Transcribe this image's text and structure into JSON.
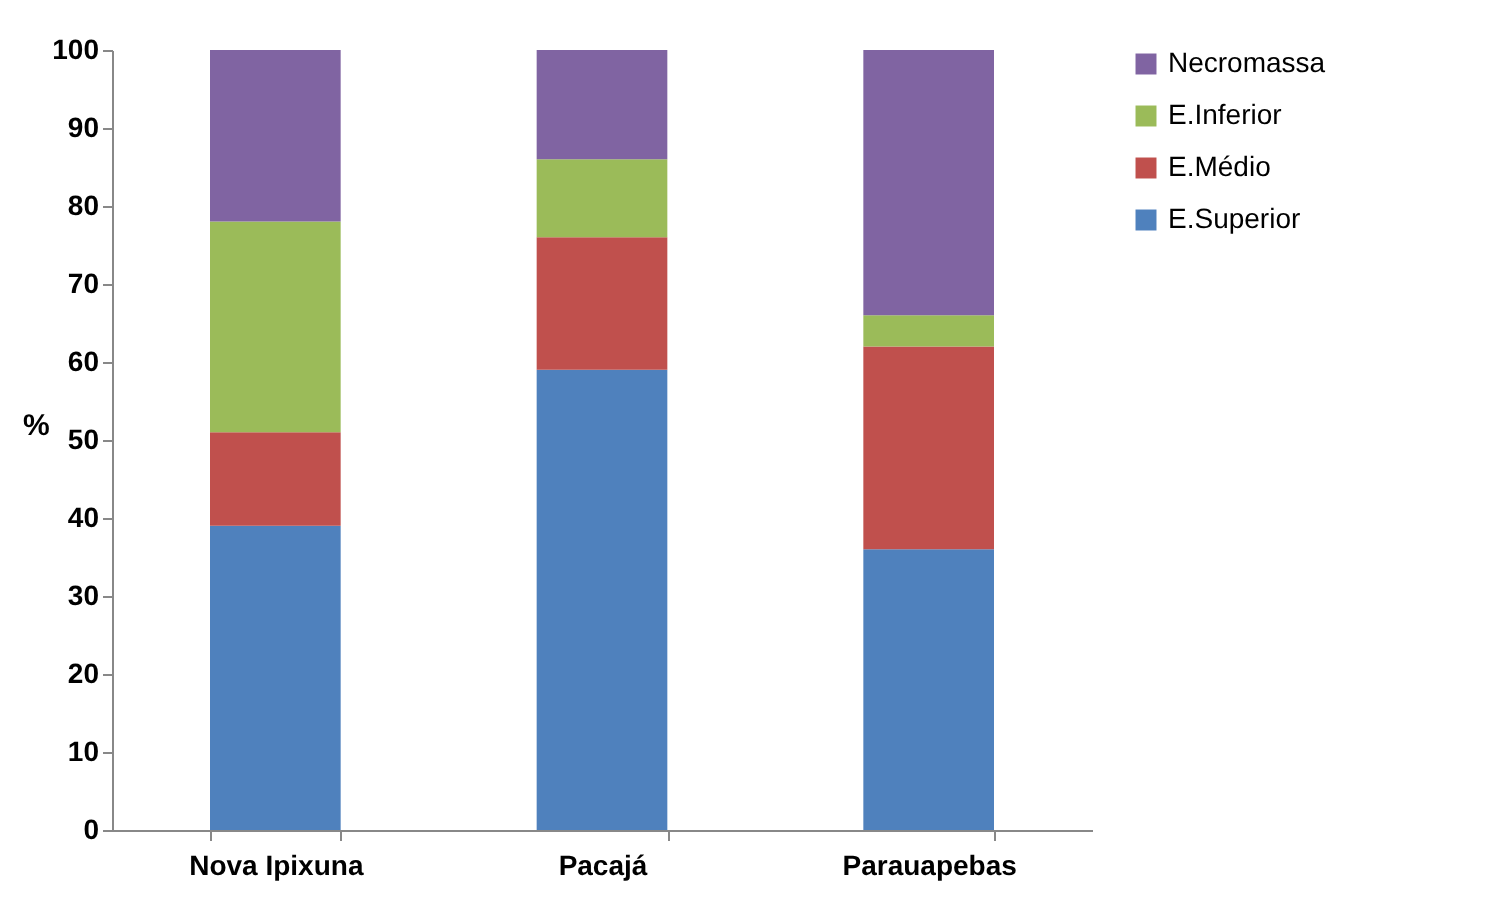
{
  "chart_data": {
    "type": "bar",
    "stacked": true,
    "ylabel": "%",
    "categories": [
      "Nova Ipixuna",
      "Pacajá",
      "Parauapebas"
    ],
    "series": [
      {
        "name": "E.Superior",
        "color": "#4f81bd",
        "values": [
          39,
          59,
          36
        ]
      },
      {
        "name": "E.Médio",
        "color": "#c0504d",
        "values": [
          12,
          17,
          26
        ]
      },
      {
        "name": "E.Inferior",
        "color": "#9bbb59",
        "values": [
          27,
          10,
          4
        ]
      },
      {
        "name": "Necromassa",
        "color": "#8064a2",
        "values": [
          22,
          14,
          34
        ]
      }
    ],
    "ylim": [
      0,
      100
    ],
    "yticks": [
      0,
      10,
      20,
      30,
      40,
      50,
      60,
      70,
      80,
      90,
      100
    ],
    "grid": false,
    "legend": "right"
  }
}
